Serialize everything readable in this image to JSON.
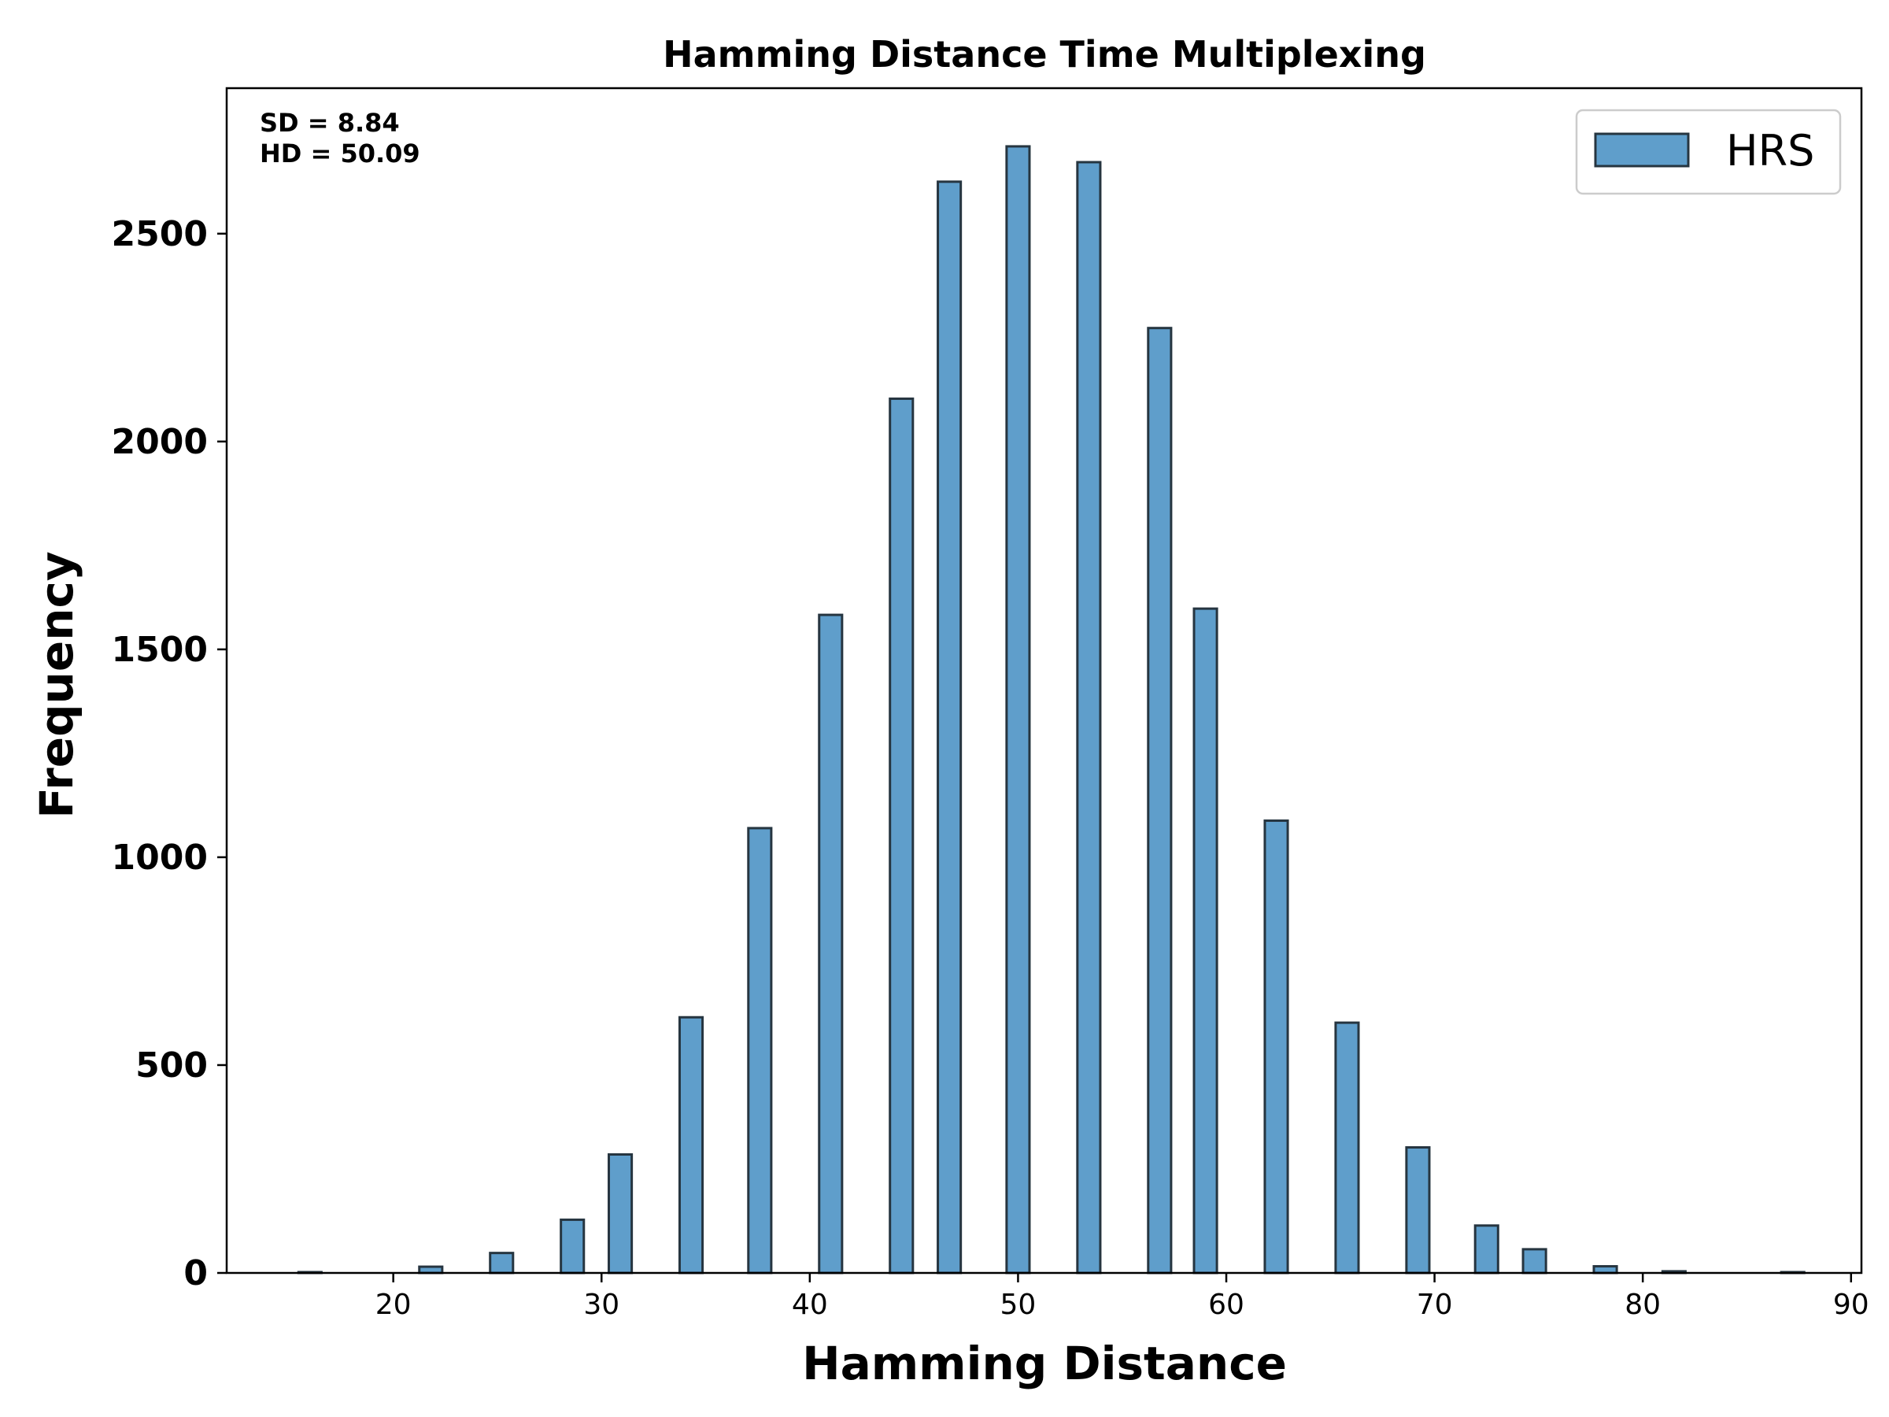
{
  "chart_data": {
    "type": "bar",
    "title": "Hamming Distance Time Multiplexing",
    "xlabel": "Hamming Distance",
    "ylabel": "Frequency",
    "xlim": [
      12,
      90.5
    ],
    "ylim": [
      0,
      2850
    ],
    "xticks": [
      20,
      30,
      40,
      50,
      60,
      70,
      80,
      90
    ],
    "yticks": [
      0,
      500,
      1000,
      1500,
      2000,
      2500
    ],
    "bar_width": 1.1,
    "grid": false,
    "legend_position": "top-right",
    "annotations": [
      "SD  = 8.84",
      "HD =  50.09"
    ],
    "series": [
      {
        "name": "HRS",
        "color": "#5f9ecb",
        "edge_color": "#263540",
        "x": [
          16.0,
          21.8,
          25.2,
          28.6,
          30.9,
          34.3,
          37.6,
          41.0,
          44.4,
          46.7,
          50.0,
          53.4,
          56.8,
          59.0,
          62.4,
          65.8,
          69.2,
          72.5,
          74.8,
          78.2,
          81.5,
          87.2
        ],
        "values": [
          2,
          15,
          48,
          128,
          285,
          615,
          1070,
          1583,
          2103,
          2625,
          2710,
          2672,
          2273,
          1598,
          1088,
          602,
          302,
          114,
          57,
          16,
          4,
          2
        ]
      }
    ]
  }
}
